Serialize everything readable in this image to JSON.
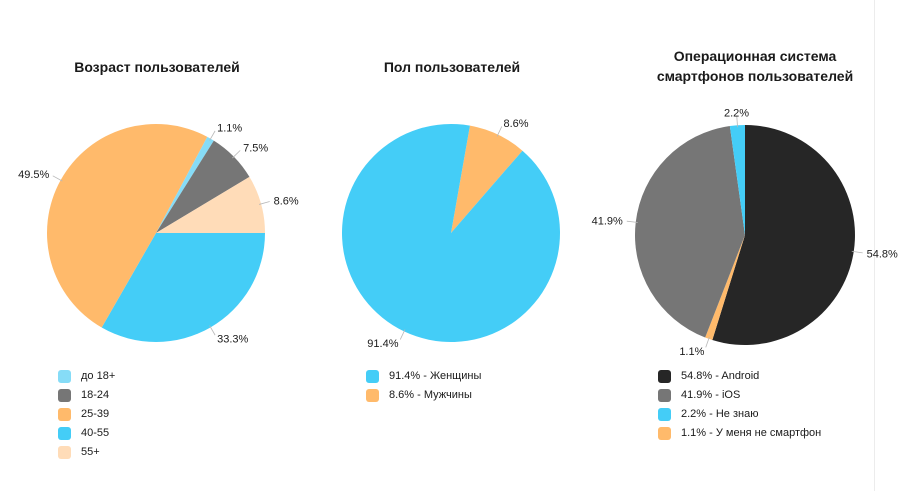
{
  "chart_data": [
    {
      "type": "pie",
      "title": "Возраст пользователей",
      "slices": [
        {
          "label": "до 18+",
          "value": 1.1,
          "value_label": "1.1%",
          "color": "#86dcf7"
        },
        {
          "label": "18-24",
          "value": 7.5,
          "value_label": "7.5%",
          "color": "#767676"
        },
        {
          "label": "25-39",
          "value": 49.5,
          "value_label": "49.5%",
          "color": "#ffba6b"
        },
        {
          "label": "40-55",
          "value": 33.3,
          "value_label": "33.3%",
          "color": "#44cdf7"
        },
        {
          "label": "55+",
          "value": 8.6,
          "value_label": "8.6%",
          "color": "#ffdcb8"
        }
      ],
      "draw_order": [
        3,
        2,
        0,
        1,
        4
      ],
      "start_angle_deg": 0,
      "legend": [
        "до 18+",
        "18-24",
        "25-39",
        "40-55",
        "55+"
      ],
      "legend_colors": [
        "#86dcf7",
        "#767676",
        "#ffba6b",
        "#44cdf7",
        "#ffdcb8"
      ],
      "legend_position": "bottom-left"
    },
    {
      "type": "pie",
      "title": "Пол пользователей",
      "slices": [
        {
          "label": "Женщины",
          "value": 91.4,
          "value_label": "91.4%",
          "color": "#44cdf7"
        },
        {
          "label": "Мужчины",
          "value": 8.6,
          "value_label": "8.6%",
          "color": "#ffba6b"
        }
      ],
      "draw_order": [
        1,
        0
      ],
      "start_angle_deg": -80,
      "legend": [
        "91.4% - Женщины",
        "8.6% - Мужчины"
      ],
      "legend_colors": [
        "#44cdf7",
        "#ffba6b"
      ],
      "legend_position": "bottom-left"
    },
    {
      "type": "pie",
      "title": "Операционная система\nсмартфонов пользователей",
      "slices": [
        {
          "label": "Android",
          "value": 54.8,
          "value_label": "54.8%",
          "color": "#262626"
        },
        {
          "label": "iOS",
          "value": 41.9,
          "value_label": "41.9%",
          "color": "#767676"
        },
        {
          "label": "Не знаю",
          "value": 2.2,
          "value_label": "2.2%",
          "color": "#44cdf7"
        },
        {
          "label": "У меня не смартфон",
          "value": 1.1,
          "value_label": "1.1%",
          "color": "#ffba6b"
        }
      ],
      "draw_order": [
        0,
        3,
        1,
        2
      ],
      "start_angle_deg": -90,
      "legend": [
        "54.8% - Android",
        "41.9% - iOS",
        "2.2% - Не знаю",
        "1.1% - У меня не смартфон"
      ],
      "legend_colors": [
        "#262626",
        "#767676",
        "#44cdf7",
        "#ffba6b"
      ],
      "legend_position": "bottom-left"
    }
  ]
}
